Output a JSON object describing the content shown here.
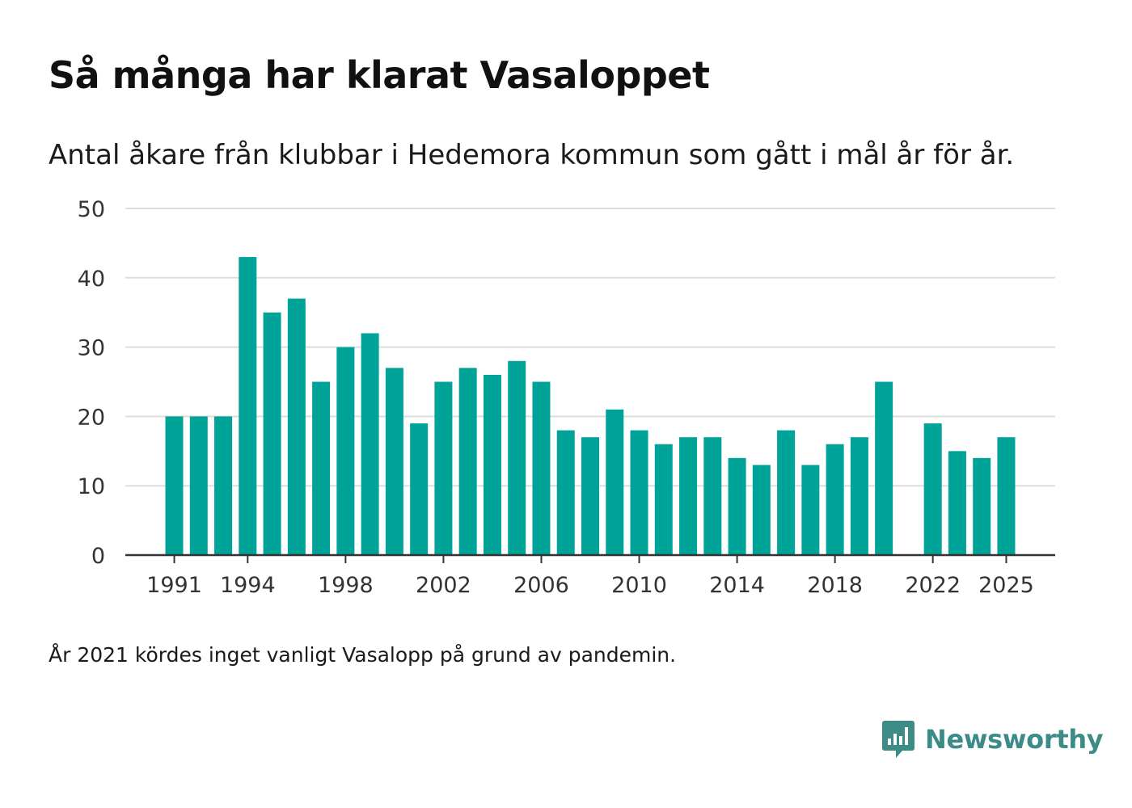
{
  "header": {
    "title": "Så många har klarat Vasaloppet",
    "subtitle": "Antal åkare från klubbar i Hedemora kommun som gått i mål år för år."
  },
  "footer": {
    "note": "År 2021 kördes inget vanligt Vasalopp på grund av pandemin.",
    "brand": "Newsworthy"
  },
  "colors": {
    "bar": "#00a398",
    "grid": "#dddddd",
    "axis": "#333333",
    "brand": "#3d8b86"
  },
  "chart_data": {
    "type": "bar",
    "title": "Så många har klarat Vasaloppet",
    "subtitle": "Antal åkare från klubbar i Hedemora kommun som gått i mål år för år.",
    "xlabel": "",
    "ylabel": "",
    "ylim": [
      0,
      50
    ],
    "yticks": [
      0,
      10,
      20,
      30,
      40,
      50
    ],
    "xticks": [
      1991,
      1994,
      1998,
      2002,
      2006,
      2010,
      2014,
      2018,
      2022,
      2025
    ],
    "xlim": [
      1989,
      2027
    ],
    "grid": true,
    "x": [
      1991,
      1992,
      1993,
      1994,
      1995,
      1996,
      1997,
      1998,
      1999,
      2000,
      2001,
      2002,
      2003,
      2004,
      2005,
      2006,
      2007,
      2008,
      2009,
      2010,
      2011,
      2012,
      2013,
      2014,
      2015,
      2016,
      2017,
      2018,
      2019,
      2020,
      2022,
      2023,
      2024,
      2025
    ],
    "values": [
      20,
      20,
      20,
      43,
      35,
      37,
      25,
      30,
      32,
      27,
      19,
      25,
      27,
      26,
      28,
      25,
      18,
      17,
      21,
      18,
      16,
      17,
      17,
      14,
      13,
      18,
      13,
      16,
      17,
      25,
      19,
      15,
      14,
      17
    ]
  }
}
